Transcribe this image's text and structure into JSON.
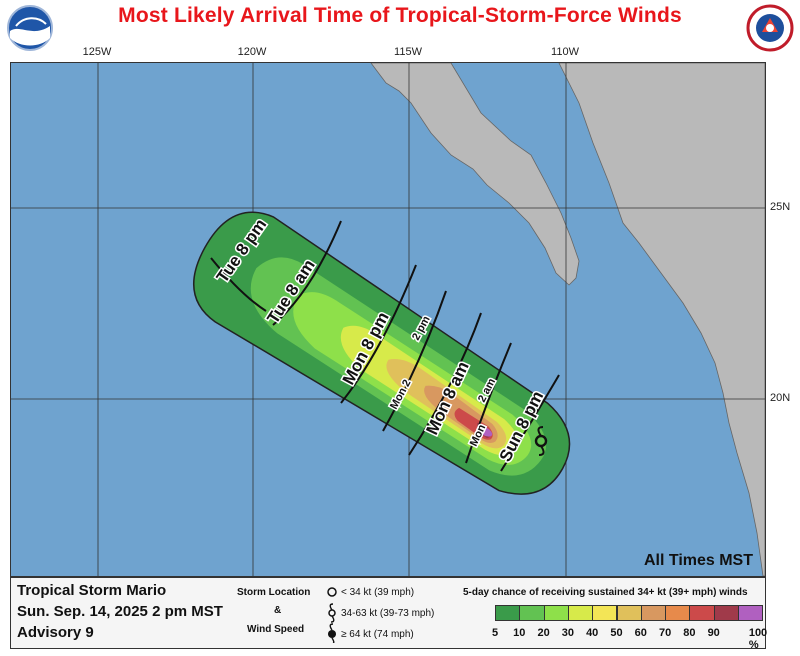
{
  "title": "Most Likely Arrival Time of Tropical-Storm-Force Winds",
  "longitudes": [
    "125W",
    "120W",
    "115W",
    "110W"
  ],
  "latitudes": [
    "25N",
    "20N"
  ],
  "arrival_labels": [
    {
      "text": "Tue 8 pm"
    },
    {
      "text": "Tue 8 am"
    },
    {
      "text": "Mon 8 pm"
    },
    {
      "text": "2 pm"
    },
    {
      "text": "Mon 2"
    },
    {
      "text": "Mon 8 am"
    },
    {
      "text": "2 am"
    },
    {
      "text": "Mon"
    },
    {
      "text": "Sun 8 pm"
    }
  ],
  "all_times": "All Times MST",
  "storm": {
    "name": "Tropical Storm Mario",
    "date": "Sun. Sep. 14, 2025  2 pm MST",
    "advisory": "Advisory 9"
  },
  "storm_key": {
    "header1": "Storm Location",
    "amp": "&",
    "header2": "Wind Speed",
    "items": [
      "< 34 kt (39 mph)",
      "34-63 kt (39-73 mph)",
      "≥ 64 kt (74 mph)"
    ]
  },
  "chance": {
    "title": "5-day chance of receiving sustained 34+ kt (39+ mph) winds",
    "labels": [
      "5",
      "10",
      "20",
      "30",
      "40",
      "50",
      "60",
      "70",
      "80",
      "90",
      "100 %"
    ],
    "colors": [
      "#3a9b4a",
      "#62c252",
      "#8ee04a",
      "#d7ea4a",
      "#f3e556",
      "#e0c05b",
      "#d89860",
      "#e78a4b",
      "#cc4a4a",
      "#a03a4a",
      "#b060c0"
    ]
  }
}
